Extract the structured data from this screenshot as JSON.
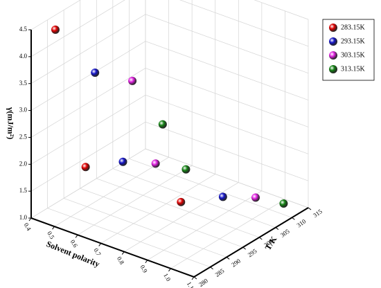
{
  "chart_data": {
    "type": "scatter3d",
    "x_label": "Solvent polarity",
    "z_label": "T/K",
    "y_label": "γ(mJ/m²)",
    "xlim": [
      0.4,
      1.1
    ],
    "xticks": [
      0.4,
      0.5,
      0.6,
      0.7,
      0.8,
      0.9,
      {
        "value": 1,
        "label": "1.0"
      },
      1.1
    ],
    "zlim": [
      280,
      315
    ],
    "zticks": [
      280,
      285,
      290,
      295,
      300,
      305,
      310,
      315
    ],
    "ylim": [
      1,
      4.5
    ],
    "yticks": [
      {
        "value": 1,
        "label": "1.0"
      },
      1.5,
      {
        "value": 2,
        "label": "2.0"
      },
      2.5,
      {
        "value": 3,
        "label": "3.0"
      },
      3.5,
      {
        "value": 4,
        "label": "4.0"
      },
      4.5
    ],
    "grid": true,
    "legend": "upper right",
    "series": [
      {
        "name": "283.15K",
        "color": "#e00000",
        "t": [
          283.15,
          283.15,
          283.15
        ],
        "x": [
          0.46,
          0.59,
          1.0
        ],
        "values": [
          4.48,
          2.13,
          2.12
        ]
      },
      {
        "name": "293.15K",
        "color": "#1414c8",
        "t": [
          293.15,
          293.15,
          293.15
        ],
        "x": [
          0.49,
          0.61,
          1.04
        ],
        "values": [
          3.36,
          1.89,
          1.91
        ]
      },
      {
        "name": "303.15K",
        "color": "#e020e0",
        "t": [
          303.15,
          303.15,
          303.15
        ],
        "x": [
          0.51,
          0.61,
          1.04
        ],
        "values": [
          2.87,
          1.49,
          1.53
        ]
      },
      {
        "name": "313.15K",
        "color": "#148214",
        "t": [
          313.15,
          313.15,
          313.15
        ],
        "x": [
          0.5,
          0.6,
          1.02
        ],
        "values": [
          1.68,
          1.0,
          1.02
        ]
      }
    ]
  }
}
